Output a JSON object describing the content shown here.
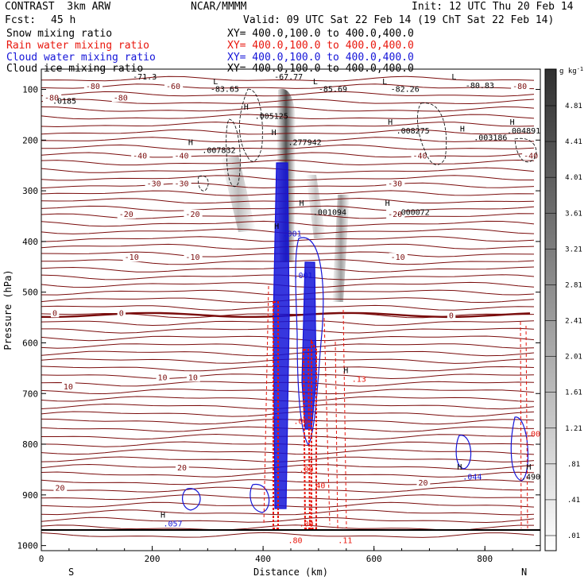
{
  "header": {
    "model": "CONTRAST  3km ARW",
    "center": "NCAR/MMMM",
    "init": "Init: 12 UTC Thu 20 Feb 14",
    "fcst_label": "Fcst:",
    "fcst_value": "45 h",
    "valid": "Valid: 09 UTC Sat 22 Feb 14 (19 ChT Sat 22 Feb 14)"
  },
  "fields": [
    {
      "name": "Snow mixing ratio",
      "xy": "XY= 400.0,100.0 to 400.0,400.0",
      "color": "#000000"
    },
    {
      "name": "Rain water mixing ratio",
      "xy": "XY= 400.0,100.0 to 400.0,400.0",
      "color": "#e8160c"
    },
    {
      "name": "Cloud water mixing ratio",
      "xy": "XY= 400.0,100.0 to 400.0,400.0",
      "color": "#1414d8"
    },
    {
      "name": "Cloud ice mixing ratio",
      "xy": "XY= 400.0,100.0 to 400.0,400.0",
      "color": "#000000"
    }
  ],
  "chart_data": {
    "type": "cross-section",
    "xlabel": "Distance (km)",
    "ylabel": "Pressure (hPa)",
    "xlim": [
      0,
      900
    ],
    "ylim": [
      1010,
      60
    ],
    "x_ticks": [
      0,
      200,
      400,
      600,
      800
    ],
    "y_ticks": [
      100,
      200,
      300,
      400,
      500,
      600,
      700,
      800,
      900,
      1000
    ],
    "end_labels": {
      "left": "S",
      "right": "N"
    },
    "colorbar": {
      "unit": "g kg",
      "unit_exp": "-1",
      "ticks": [
        ".01",
        ".41",
        ".81",
        "1.21",
        "1.61",
        "2.01",
        "2.41",
        "2.81",
        "3.21",
        "3.61",
        "4.01",
        "4.41",
        "4.81"
      ]
    },
    "temperature_labels": [
      {
        "t": "-80",
        "x": 80,
        "p": 98
      },
      {
        "t": "-80",
        "x": 0,
        "p": 120
      },
      {
        "t": "-80",
        "x": 130,
        "p": 120
      },
      {
        "t": "-60",
        "x": 225,
        "p": 98
      },
      {
        "t": "-80",
        "x": 850,
        "p": 98
      },
      {
        "t": "-40",
        "x": 165,
        "p": 235
      },
      {
        "t": "-40",
        "x": 240,
        "p": 235
      },
      {
        "t": "-40",
        "x": 670,
        "p": 235
      },
      {
        "t": "-40",
        "x": 870,
        "p": 235
      },
      {
        "t": "-30",
        "x": 190,
        "p": 290
      },
      {
        "t": "-30",
        "x": 240,
        "p": 290
      },
      {
        "t": "-30",
        "x": 625,
        "p": 290
      },
      {
        "t": "-20",
        "x": 140,
        "p": 350
      },
      {
        "t": "-20",
        "x": 260,
        "p": 350
      },
      {
        "t": "-20",
        "x": 625,
        "p": 350
      },
      {
        "t": "-10",
        "x": 150,
        "p": 435
      },
      {
        "t": "-10",
        "x": 260,
        "p": 435
      },
      {
        "t": "-10",
        "x": 630,
        "p": 435
      },
      {
        "t": "0",
        "x": 20,
        "p": 545
      },
      {
        "t": "0",
        "x": 140,
        "p": 545
      },
      {
        "t": "0",
        "x": 735,
        "p": 550
      },
      {
        "t": "10",
        "x": 210,
        "p": 672
      },
      {
        "t": "10",
        "x": 265,
        "p": 672
      },
      {
        "t": "10",
        "x": 40,
        "p": 690
      },
      {
        "t": "20",
        "x": 245,
        "p": 850
      },
      {
        "t": "20",
        "x": 25,
        "p": 890
      },
      {
        "t": "20",
        "x": 680,
        "p": 880
      }
    ],
    "extrema": [
      {
        "label": "-71.3",
        "x": 165,
        "p": 80
      },
      {
        "label": "L",
        "x": 310,
        "p": 90
      },
      {
        "label": "-83.65",
        "x": 305,
        "p": 105
      },
      {
        "label": "-67.77",
        "x": 420,
        "p": 80
      },
      {
        "label": "L",
        "x": 490,
        "p": 90
      },
      {
        "label": "-85.69",
        "x": 500,
        "p": 105
      },
      {
        "label": "L",
        "x": 615,
        "p": 90
      },
      {
        "label": "-82.26",
        "x": 630,
        "p": 105
      },
      {
        "label": "L",
        "x": 740,
        "p": 80
      },
      {
        "label": "-80.83",
        "x": 765,
        "p": 98
      },
      {
        "label": "H",
        "x": 365,
        "p": 140
      },
      {
        "label": ".005125",
        "x": 385,
        "p": 158
      },
      {
        "label": ".0185",
        "x": 20,
        "p": 128
      },
      {
        "label": "H",
        "x": 415,
        "p": 190
      },
      {
        "label": ".277942",
        "x": 445,
        "p": 210
      },
      {
        "label": "H",
        "x": 265,
        "p": 210
      },
      {
        "label": ".007832",
        "x": 290,
        "p": 225
      },
      {
        "label": "H",
        "x": 625,
        "p": 170
      },
      {
        "label": ".008275",
        "x": 640,
        "p": 187
      },
      {
        "label": "H",
        "x": 755,
        "p": 183
      },
      {
        "label": ".003186",
        "x": 780,
        "p": 200
      },
      {
        "label": "H",
        "x": 845,
        "p": 170
      },
      {
        "label": ".004891",
        "x": 865,
        "p": 187
      },
      {
        "label": "H",
        "x": 465,
        "p": 330
      },
      {
        "label": ".001094",
        "x": 490,
        "p": 348
      },
      {
        "label": "H",
        "x": 620,
        "p": 330
      },
      {
        "label": ".000072",
        "x": 640,
        "p": 348
      },
      {
        "label": "H",
        "x": 420,
        "p": 375
      },
      {
        "label": ".001",
        "x": 435,
        "p": 390
      },
      {
        "label": ".001",
        "x": 455,
        "p": 472
      },
      {
        "label": "H",
        "x": 545,
        "p": 660
      },
      {
        "label": ".13",
        "x": 560,
        "p": 677
      },
      {
        "label": "H",
        "x": 750,
        "p": 850
      },
      {
        "label": ".044",
        "x": 760,
        "p": 870
      },
      {
        "label": "H",
        "x": 875,
        "p": 850
      },
      {
        "label": ".490",
        "x": 880,
        "p": 870
      },
      {
        "label": "H",
        "x": 215,
        "p": 945
      },
      {
        "label": ".057",
        "x": 220,
        "p": 962
      },
      {
        "label": ".00",
        "x": 455,
        "p": 760
      },
      {
        "label": ".00",
        "x": 465,
        "p": 855
      },
      {
        "label": "40",
        "x": 495,
        "p": 887
      },
      {
        "label": ".00",
        "x": 465,
        "p": 962
      },
      {
        "label": ".80",
        "x": 445,
        "p": 995
      },
      {
        "label": ".11",
        "x": 535,
        "p": 995
      },
      {
        "label": ".00",
        "x": 875,
        "p": 785
      }
    ]
  }
}
